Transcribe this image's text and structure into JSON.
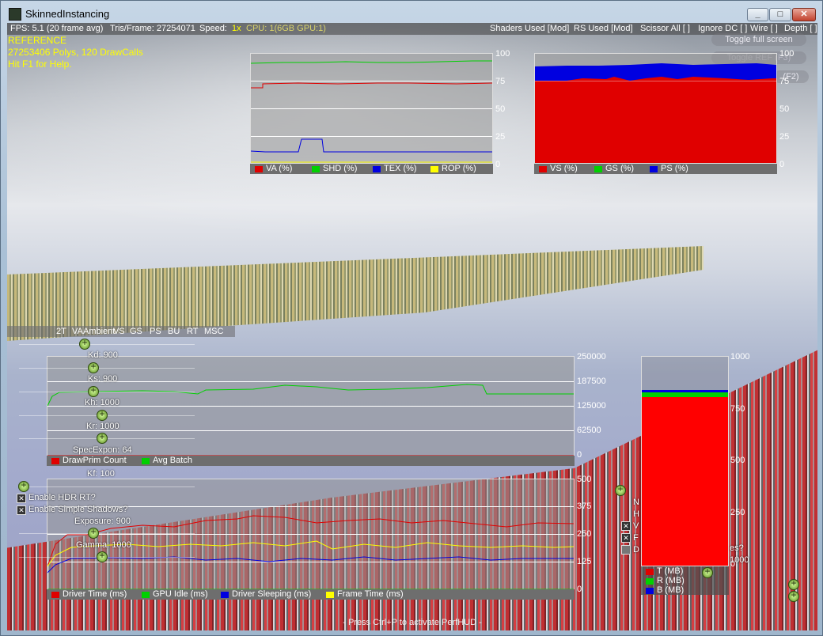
{
  "window": {
    "title": "SkinnedInstancing"
  },
  "status": {
    "fps": "FPS: 5.1 (20 frame avg)",
    "tris": "Tris/Frame: 27254071",
    "speed": "Speed:",
    "speed_val": "1x",
    "speed_detail": "CPU: 1(6GB GPU:1)",
    "shaders": "Shaders Used [Mod]",
    "rs": "RS Used [Mod]",
    "scissor": "Scissor All [ ]",
    "ignore": "Ignore DC [ ]",
    "wire": "Wire [ ]",
    "depth": "Depth [ ]"
  },
  "info": {
    "line1": "REFERENCE",
    "line2": "27253406 Polys, 120 DrawCalls",
    "line3": "Hit F1 for Help."
  },
  "buttons": {
    "toggle_fullscreen": "Toggle full screen",
    "toggle_ref": "Toggle REF (F3)",
    "f2": "(F2)"
  },
  "graph1": {
    "axis": [
      "100",
      "75",
      "50",
      "25",
      "0"
    ],
    "legend": [
      {
        "label": "VA (%)",
        "color": "#e00000"
      },
      {
        "label": "SHD (%)",
        "color": "#00d000"
      },
      {
        "label": "TEX (%)",
        "color": "#0000e0"
      },
      {
        "label": "ROP (%)",
        "color": "#ffff00"
      }
    ]
  },
  "graph2": {
    "axis": [
      "100",
      "75",
      "50",
      "25",
      "0"
    ],
    "legend": [
      {
        "label": "VS (%)",
        "color": "#e00000"
      },
      {
        "label": "GS (%)",
        "color": "#00d000"
      },
      {
        "label": "PS (%)",
        "color": "#0000e0"
      }
    ]
  },
  "graph3": {
    "axis": [
      "250000",
      "187500",
      "125000",
      "62500",
      "0"
    ],
    "legend": [
      {
        "label": "DrawPrim Count",
        "color": "#e00000"
      },
      {
        "label": "Avg Batch",
        "color": "#00d000"
      }
    ]
  },
  "graph4": {
    "axis": [
      "500",
      "375",
      "250",
      "125",
      "0"
    ],
    "legend": [
      {
        "label": "Driver Time (ms)",
        "color": "#e00000"
      },
      {
        "label": "GPU Idle (ms)",
        "color": "#00d000"
      },
      {
        "label": "Driver Sleeping (ms)",
        "color": "#0000e0"
      },
      {
        "label": "Frame Time (ms)",
        "color": "#ffff00"
      }
    ]
  },
  "graph5": {
    "axis": [
      "1000",
      "750",
      "500",
      "250",
      "0"
    ],
    "legend": [
      {
        "label": "T (MB)",
        "color": "#e00000"
      },
      {
        "label": "R (MB)",
        "color": "#00d000"
      },
      {
        "label": "B (MB)",
        "color": "#0000e0"
      }
    ]
  },
  "tabs": [
    "2T",
    "VA",
    "Ambient",
    "VS",
    "GS",
    "PS",
    "BU",
    "RT",
    "MSC"
  ],
  "sliders": [
    {
      "label": "Kd: 900"
    },
    {
      "label": "Ks: 900"
    },
    {
      "label": "Kh: 1000"
    },
    {
      "label": "Kr: 1000"
    },
    {
      "label": "SpecExpon: 64"
    },
    {
      "label": "Kf: 100"
    },
    {
      "label": "Exposure: 900"
    },
    {
      "label": "Gamma: 1000"
    }
  ],
  "checkboxes": [
    {
      "label": "Enable HDR RT?"
    },
    {
      "label": "Enable Simple Shadows?"
    }
  ],
  "right_fragments": [
    "N",
    "H",
    "V",
    "F",
    "D",
    "es?",
    "1000"
  ],
  "footer": "- Press Ctrl+P to activate PerfHUD -"
}
